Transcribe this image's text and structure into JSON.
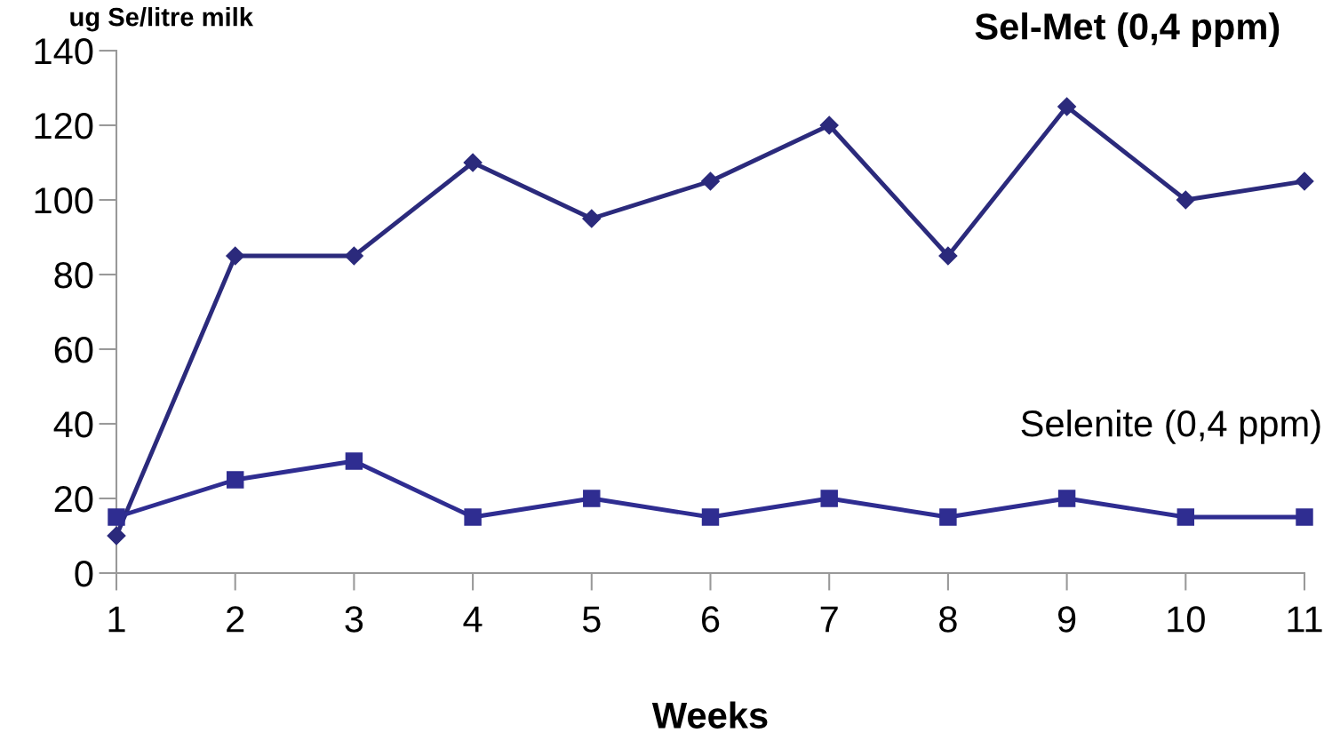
{
  "chart_data": {
    "type": "line",
    "xlabel": "Weeks",
    "ylabel": "ug Se/litre milk",
    "categories": [
      "1",
      "2",
      "3",
      "4",
      "5",
      "6",
      "7",
      "8",
      "9",
      "10",
      "11"
    ],
    "series": [
      {
        "name": "Sel-Met (0,4 ppm)",
        "color": "#2b2a7c",
        "marker": "diamond",
        "values": [
          10,
          85,
          85,
          110,
          95,
          105,
          120,
          85,
          125,
          100,
          105
        ]
      },
      {
        "name": "Selenite (0,4 ppm)",
        "color": "#2f2d91",
        "marker": "square",
        "values": [
          15,
          25,
          30,
          15,
          20,
          15,
          20,
          15,
          20,
          15,
          15
        ]
      }
    ],
    "ylim": [
      0,
      140
    ],
    "yticks": [
      0,
      20,
      40,
      60,
      80,
      100,
      120,
      140
    ],
    "grid": false,
    "legend": false,
    "line_style": "solid"
  }
}
